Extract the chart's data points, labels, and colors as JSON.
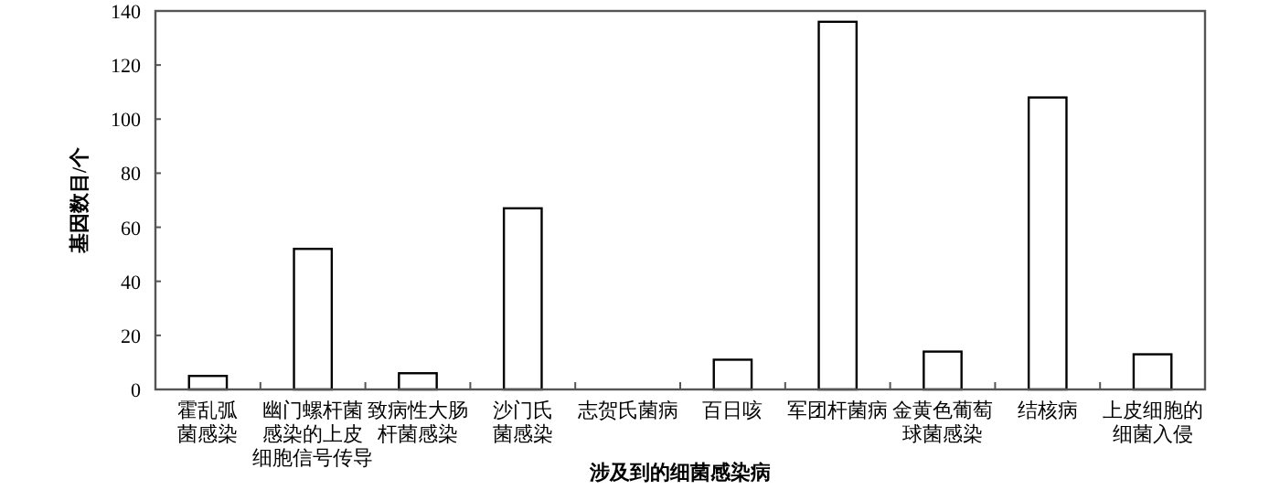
{
  "chart_data": {
    "type": "bar",
    "xlabel": "涉及到的细菌感染病",
    "ylabel": "基因数目/个",
    "categories": [
      "霍乱弧菌感染",
      "幽门螺杆菌感染的上皮细胞信号传导",
      "致病性大肠杆菌感染",
      "沙门氏菌感染",
      "志贺氏菌病",
      "百日咳",
      "军团杆菌病",
      "金黄色葡萄球菌感染",
      "结核病",
      "上皮细胞的细菌入侵"
    ],
    "values": [
      5,
      52,
      6,
      67,
      0,
      11,
      136,
      14,
      108,
      13
    ],
    "color": "#ffffff",
    "ylim": [
      0,
      140
    ],
    "yticks": [
      0,
      20,
      40,
      60,
      80,
      100,
      120,
      140
    ],
    "grid": false
  }
}
